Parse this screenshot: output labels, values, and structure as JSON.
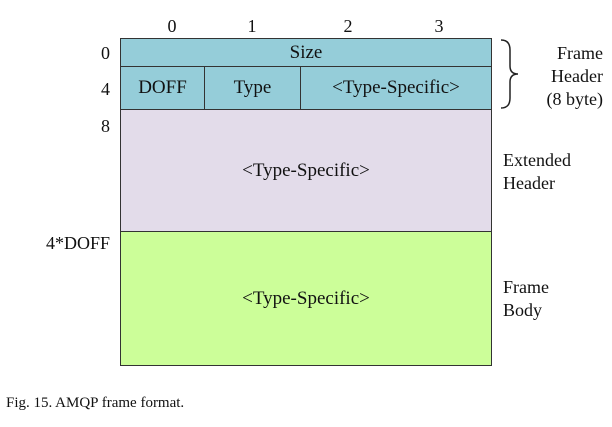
{
  "columns": [
    "0",
    "1",
    "2",
    "3"
  ],
  "rows": {
    "r0": "0",
    "r4": "4",
    "r8": "8",
    "rdoff": "4*DOFF"
  },
  "header": {
    "size_label": "Size",
    "doff_label": "DOFF",
    "type_label": "Type",
    "type_specific_label": "<Type-Specific>"
  },
  "extended_header": {
    "content_label": "<Type-Specific>",
    "side_label_line1": "Extended",
    "side_label_line2": "Header"
  },
  "frame_body": {
    "content_label": "<Type-Specific>",
    "side_label_line1": "Frame",
    "side_label_line2": "Body"
  },
  "frame_header_side": {
    "line1": "Frame",
    "line2": "Header",
    "line3": "(8 byte)"
  },
  "caption": "Fig. 15.  AMQP frame format.",
  "colors": {
    "header_fill": "#95cdd9",
    "extended_fill": "#e3dcea",
    "body_fill": "#ccfe99"
  }
}
